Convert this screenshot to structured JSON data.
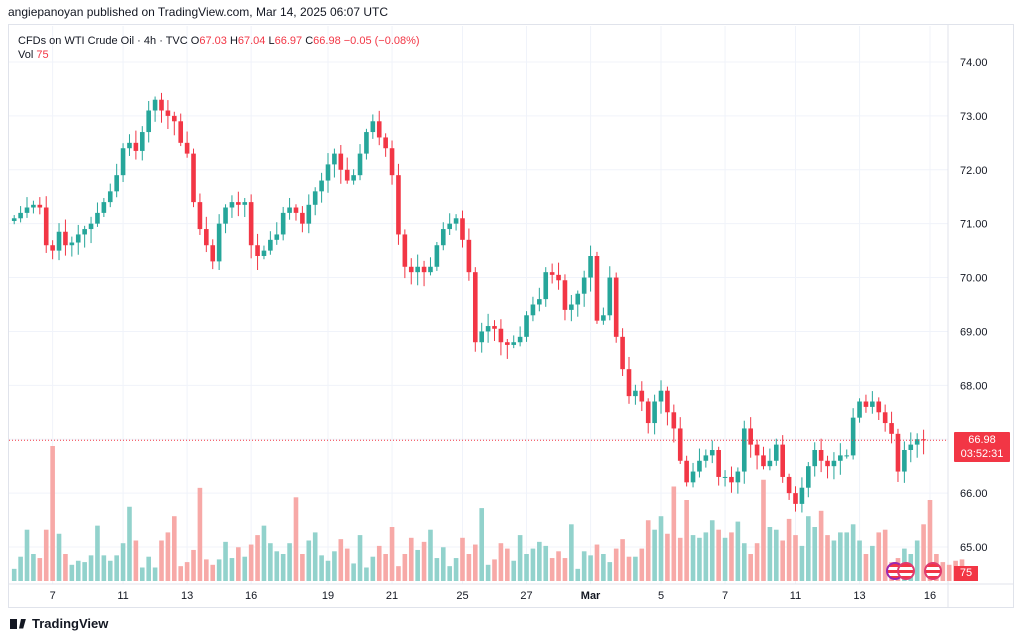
{
  "header": {
    "publisher_line": "angiepanoyan published on TradingView.com, Mar 14, 2025 06:07 UTC"
  },
  "legend": {
    "symbol_line": "CFDs on WTI Crude Oil · 4h · TVC",
    "open_label": "O",
    "open": "67.03",
    "high_label": "H",
    "high": "67.04",
    "low_label": "L",
    "low": "66.97",
    "close_label": "C",
    "close": "66.98",
    "change": "−0.05 (−0.08%)",
    "vol_label": "Vol",
    "vol_value": "75"
  },
  "price_tag": {
    "price": "66.98",
    "countdown": "03:52:31"
  },
  "vol_tag": "75",
  "footer": {
    "brand": "TradingView"
  },
  "colors": {
    "up": "#26a69a",
    "down": "#f23645",
    "up_vol": "#92d2cc",
    "down_vol": "#f7a9a7",
    "grid": "#f0f3fa"
  },
  "chart_data": {
    "type": "candlestick",
    "title": "CFDs on WTI Crude Oil · 4h · TVC",
    "y_ticks": [
      "74.00",
      "73.00",
      "72.00",
      "71.00",
      "70.00",
      "69.00",
      "68.00",
      "67.00",
      "66.00",
      "65.00"
    ],
    "ylim": [
      64.6,
      74.4
    ],
    "x_ticks": [
      "7",
      "11",
      "13",
      "16",
      "19",
      "21",
      "25",
      "27",
      "Mar",
      "5",
      "7",
      "11",
      "13",
      "16"
    ],
    "x_tick_index": [
      6,
      17,
      27,
      37,
      49,
      59,
      70,
      80,
      90,
      101,
      111,
      122,
      132,
      143
    ],
    "n_slots": 146,
    "last_price": 66.98,
    "closes": [
      71.1,
      71.2,
      71.3,
      71.35,
      71.3,
      70.6,
      70.5,
      70.85,
      70.6,
      70.65,
      70.8,
      70.9,
      71.0,
      71.2,
      71.4,
      71.6,
      71.9,
      72.4,
      72.5,
      72.35,
      72.7,
      73.1,
      73.3,
      73.1,
      73.0,
      72.9,
      72.5,
      72.3,
      71.4,
      70.9,
      70.6,
      70.3,
      71.0,
      71.3,
      71.4,
      71.35,
      71.4,
      70.6,
      70.4,
      70.5,
      70.7,
      70.8,
      71.2,
      71.3,
      71.2,
      71.0,
      71.35,
      71.6,
      71.8,
      72.1,
      72.3,
      72.0,
      71.8,
      71.9,
      72.3,
      72.7,
      72.9,
      72.6,
      72.4,
      71.9,
      70.8,
      70.2,
      70.1,
      70.2,
      70.1,
      70.2,
      70.6,
      70.9,
      71.0,
      71.1,
      70.7,
      70.1,
      68.8,
      69.0,
      69.1,
      69.05,
      68.8,
      68.75,
      68.8,
      68.9,
      69.3,
      69.5,
      69.6,
      70.1,
      70.05,
      69.95,
      69.4,
      69.5,
      69.7,
      70.0,
      70.4,
      69.2,
      69.3,
      70.0,
      68.9,
      68.3,
      67.8,
      67.9,
      67.7,
      67.3,
      67.7,
      67.9,
      67.5,
      67.2,
      66.6,
      66.2,
      66.4,
      66.6,
      66.7,
      66.8,
      66.3,
      66.3,
      66.2,
      66.4,
      67.2,
      66.9,
      66.7,
      66.5,
      66.6,
      66.9,
      66.3,
      66.0,
      65.8,
      66.1,
      66.5,
      66.8,
      66.6,
      66.5,
      66.6,
      66.7,
      66.7,
      67.4,
      67.7,
      67.6,
      67.7,
      67.5,
      67.3,
      67.1,
      66.4,
      66.8,
      66.9,
      67.0,
      66.98
    ],
    "volumes": [
      0.09,
      0.18,
      0.38,
      0.2,
      0.17,
      0.38,
      1.0,
      0.35,
      0.2,
      0.12,
      0.15,
      0.14,
      0.19,
      0.41,
      0.19,
      0.15,
      0.19,
      0.28,
      0.55,
      0.3,
      0.1,
      0.18,
      0.1,
      0.3,
      0.36,
      0.48,
      0.11,
      0.14,
      0.23,
      0.69,
      0.16,
      0.12,
      0.16,
      0.29,
      0.17,
      0.25,
      0.18,
      0.27,
      0.34,
      0.41,
      0.28,
      0.22,
      0.2,
      0.28,
      0.62,
      0.2,
      0.3,
      0.36,
      0.19,
      0.15,
      0.22,
      0.31,
      0.24,
      0.13,
      0.34,
      0.1,
      0.18,
      0.26,
      0.2,
      0.4,
      0.11,
      0.2,
      0.32,
      0.23,
      0.29,
      0.38,
      0.17,
      0.25,
      0.11,
      0.17,
      0.32,
      0.2,
      0.27,
      0.54,
      0.12,
      0.16,
      0.28,
      0.24,
      0.15,
      0.34,
      0.2,
      0.24,
      0.29,
      0.26,
      0.17,
      0.22,
      0.17,
      0.42,
      0.09,
      0.22,
      0.19,
      0.27,
      0.2,
      0.14,
      0.24,
      0.31,
      0.18,
      0.18,
      0.24,
      0.45,
      0.38,
      0.48,
      0.35,
      0.7,
      0.32,
      0.6,
      0.34,
      0.32,
      0.36,
      0.45,
      0.38,
      0.32,
      0.36,
      0.44,
      0.28,
      0.2,
      0.28,
      0.75,
      0.4,
      0.38,
      0.3,
      0.46,
      0.34,
      0.26,
      0.48,
      0.4,
      0.52,
      0.34,
      0.3,
      0.36,
      0.36,
      0.42,
      0.3,
      0.2,
      0.26,
      0.36,
      0.38,
      0.14,
      0.17,
      0.24,
      0.2,
      0.3,
      0.42,
      0.6,
      0.2,
      0.14,
      0.12,
      0.15,
      0.16
    ]
  }
}
